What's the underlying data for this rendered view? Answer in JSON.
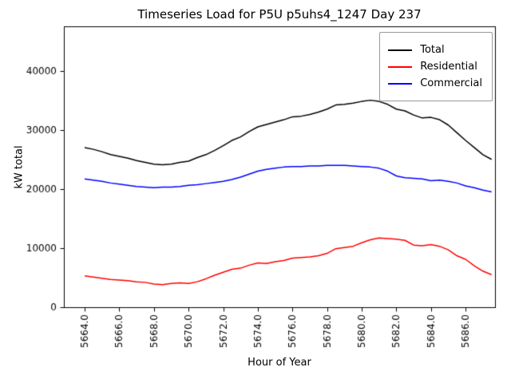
{
  "chart_data": {
    "type": "line",
    "title": "Timeseries Load for P5U p5uhs4_1247  Day 237",
    "xlabel": "Hour of Year",
    "ylabel": "kW total",
    "xlim": [
      5662.8,
      5687.7
    ],
    "ylim": [
      0,
      47500
    ],
    "grid": false,
    "legend_position": "upper right",
    "x_ticks": [
      5664,
      5666,
      5668,
      5670,
      5672,
      5674,
      5676,
      5678,
      5680,
      5682,
      5684,
      5686
    ],
    "y_ticks": [
      0,
      10000,
      20000,
      30000,
      40000
    ],
    "x": [
      5664.0,
      5664.5,
      5665.0,
      5665.5,
      5666.0,
      5666.5,
      5667.0,
      5667.5,
      5668.0,
      5668.5,
      5669.0,
      5669.5,
      5670.0,
      5670.5,
      5671.0,
      5671.5,
      5672.0,
      5672.5,
      5673.0,
      5673.5,
      5674.0,
      5674.5,
      5675.0,
      5675.5,
      5676.0,
      5676.5,
      5677.0,
      5677.5,
      5678.0,
      5678.5,
      5679.0,
      5679.5,
      5680.0,
      5680.5,
      5681.0,
      5681.5,
      5682.0,
      5682.5,
      5683.0,
      5683.5,
      5684.0,
      5684.5,
      5685.0,
      5685.5,
      5686.0,
      5686.5,
      5687.0,
      5687.5
    ],
    "series": [
      {
        "name": "Total",
        "color": "#000000",
        "values": [
          27000,
          26700,
          26300,
          25800,
          25500,
          25200,
          24800,
          24500,
          24200,
          24100,
          24200,
          24500,
          24700,
          25300,
          25800,
          26500,
          27300,
          28200,
          28800,
          29700,
          30500,
          30900,
          31300,
          31700,
          32200,
          32300,
          32600,
          33000,
          33500,
          34200,
          34300,
          34500,
          34800,
          35000,
          34800,
          34300,
          33500,
          33200,
          32500,
          32000,
          32100,
          31700,
          30800,
          29500,
          28200,
          27000,
          25800,
          25000
        ]
      },
      {
        "name": "Residential",
        "color": "#ff0000",
        "values": [
          5300,
          5100,
          4900,
          4700,
          4600,
          4500,
          4300,
          4200,
          3900,
          3800,
          4000,
          4100,
          4000,
          4300,
          4800,
          5400,
          5900,
          6400,
          6600,
          7100,
          7500,
          7400,
          7700,
          7900,
          8300,
          8400,
          8500,
          8700,
          9100,
          9900,
          10100,
          10300,
          10900,
          11400,
          11700,
          11600,
          11500,
          11300,
          10500,
          10400,
          10600,
          10300,
          9700,
          8700,
          8100,
          7000,
          6100,
          5500
        ]
      },
      {
        "name": "Commercial",
        "color": "#0000ff",
        "values": [
          21700,
          21500,
          21300,
          21000,
          20800,
          20600,
          20400,
          20300,
          20200,
          20300,
          20300,
          20400,
          20600,
          20700,
          20900,
          21100,
          21300,
          21600,
          22000,
          22500,
          23000,
          23300,
          23500,
          23700,
          23800,
          23800,
          23900,
          23900,
          24000,
          24000,
          24000,
          23900,
          23800,
          23700,
          23500,
          23000,
          22200,
          21900,
          21800,
          21700,
          21400,
          21500,
          21300,
          21000,
          20500,
          20200,
          19800,
          19500
        ]
      }
    ]
  }
}
